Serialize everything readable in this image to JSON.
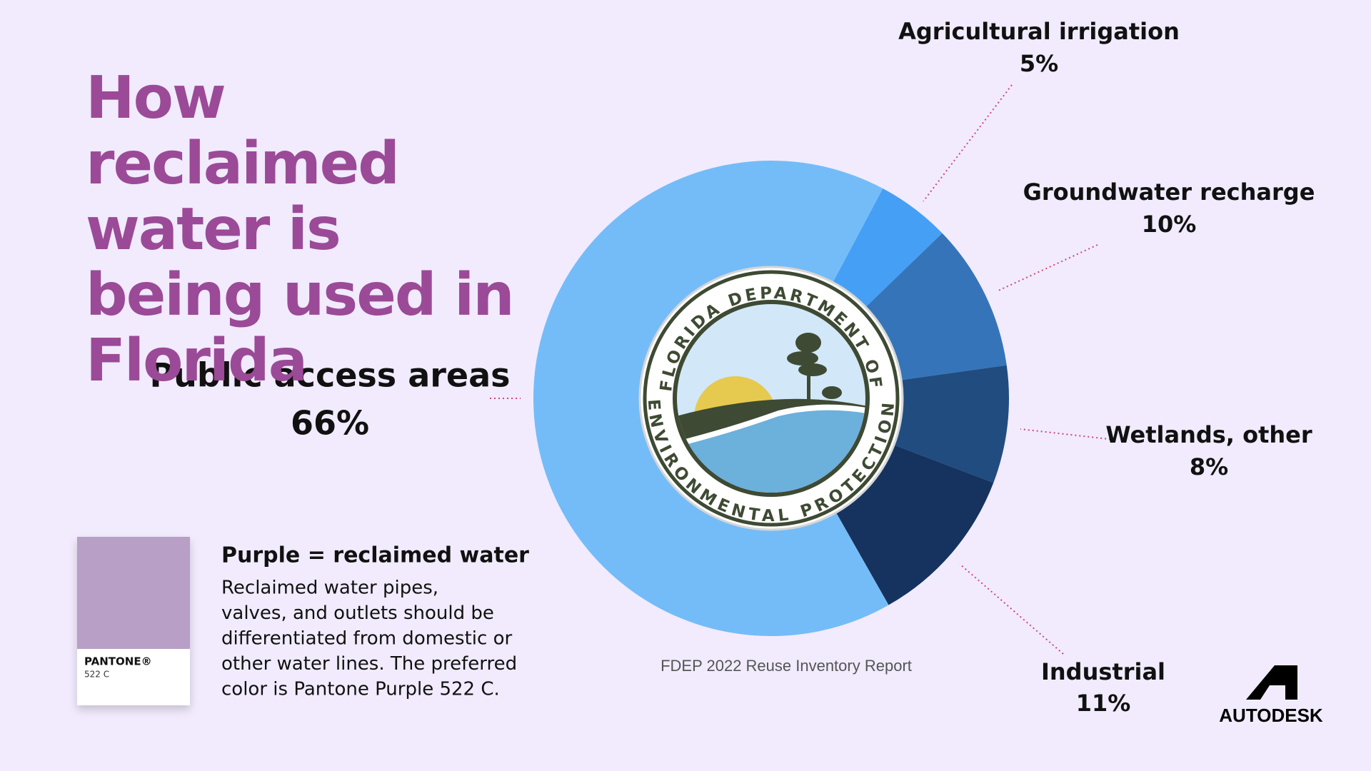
{
  "chart_data": {
    "type": "pie",
    "title": "How reclaimed water is being used in Florida",
    "categories": [
      "Agricultural irrigation",
      "Groundwater recharge",
      "Wetlands, other",
      "Industrial",
      "Public access areas"
    ],
    "values": [
      5,
      10,
      8,
      11,
      66
    ],
    "value_labels": [
      "5%",
      "10%",
      "8%",
      "11%",
      "66%"
    ],
    "colors": [
      "#459ff5",
      "#3574b9",
      "#204c80",
      "#15335e",
      "#74bcf8"
    ],
    "source": "FDEP 2022 Reuse Inventory Report"
  },
  "seal": {
    "top": "FLORIDA DEPARTMENT OF",
    "bottom": "ENVIRONMENTAL PROTECTION"
  },
  "note": {
    "heading": "Purple = reclaimed water",
    "lines": [
      "Reclaimed water pipes,",
      "valves, and outlets should be",
      "differentiated from domestic or",
      "other water lines. The preferred",
      "color is Pantone Purple 522 C."
    ]
  },
  "swatch": {
    "brand": "PANTONE®",
    "code": "522 C"
  },
  "logo": "AUTODESK"
}
